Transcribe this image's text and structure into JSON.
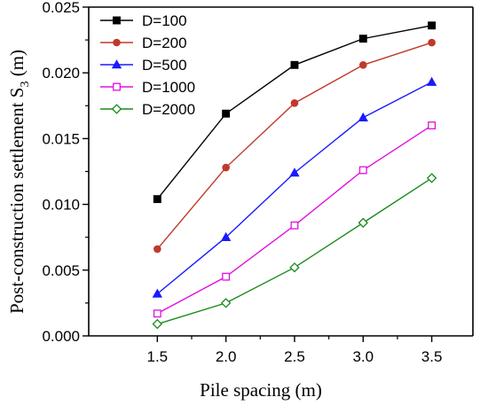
{
  "chart_data": {
    "type": "line",
    "xlabel": "Pile spacing (m)",
    "ylabel": {
      "prefix": "Post-construction settlement S",
      "subscript": "3",
      "suffix": " (m)"
    },
    "x": [
      1.5,
      2.0,
      2.5,
      3.0,
      3.5
    ],
    "xlim": [
      1.0,
      3.8
    ],
    "ylim": [
      0.0,
      0.025
    ],
    "xticks": [
      1.5,
      2.0,
      2.5,
      3.0,
      3.5
    ],
    "xtick_labels": [
      "1.5",
      "2.0",
      "2.5",
      "3.0",
      "3.5"
    ],
    "yticks": [
      0.0,
      0.005,
      0.01,
      0.015,
      0.02,
      0.025
    ],
    "ytick_labels": [
      "0.000",
      "0.005",
      "0.010",
      "0.015",
      "0.020",
      "0.025"
    ],
    "grid": false,
    "legend_position": "top-left",
    "series": [
      {
        "name": "D=100",
        "color": "#000000",
        "marker": "square-filled",
        "values": [
          0.0104,
          0.0169,
          0.0206,
          0.0226,
          0.0236
        ]
      },
      {
        "name": "D=200",
        "color": "#c0392b",
        "marker": "circle-filled",
        "values": [
          0.0066,
          0.0128,
          0.0177,
          0.0206,
          0.0223
        ]
      },
      {
        "name": "D=500",
        "color": "#1a1aff",
        "marker": "triangle-filled",
        "values": [
          0.0032,
          0.0075,
          0.0124,
          0.0166,
          0.0193
        ]
      },
      {
        "name": "D=1000",
        "color": "#e010e0",
        "marker": "square-open",
        "values": [
          0.0017,
          0.0045,
          0.0084,
          0.0126,
          0.016
        ]
      },
      {
        "name": "D=2000",
        "color": "#1a8a1a",
        "marker": "diamond-open",
        "values": [
          0.0009,
          0.0025,
          0.0052,
          0.0086,
          0.012
        ]
      }
    ]
  }
}
